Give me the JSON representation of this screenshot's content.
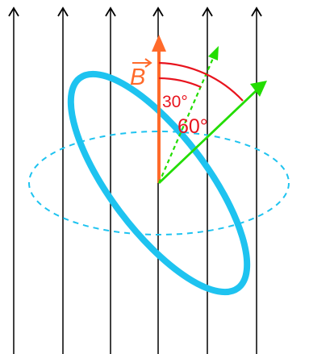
{
  "labels": {
    "field": "B",
    "angle_small": "30°",
    "angle_large": "60°"
  },
  "field_lines": {
    "count": 6
  },
  "angles_deg": {
    "dashed_normal_from_b": 30,
    "solid_normal_from_b": 60
  },
  "colors": {
    "field_lines": "#000000",
    "b_vector": "#ff6a2a",
    "loop": "#1ec3f0",
    "normal": "#22dd00",
    "angle_arcs": "#e8141e",
    "angle_labels": "#e8141e",
    "field_label": "#ff6a2a"
  }
}
